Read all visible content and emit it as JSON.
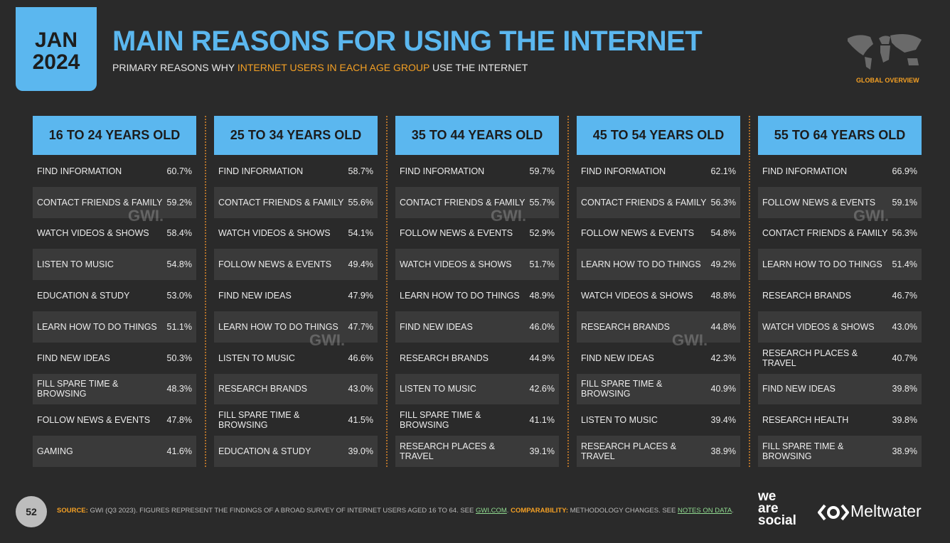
{
  "header": {
    "date_month": "JAN",
    "date_year": "2024",
    "title": "MAIN REASONS FOR USING THE INTERNET",
    "subtitle_start": "PRIMARY REASONS WHY",
    "subtitle_highlight": "INTERNET USERS IN EACH AGE GROUP",
    "subtitle_end": "USE THE INTERNET",
    "region": "GLOBAL OVERVIEW"
  },
  "watermark": "GWI.",
  "columns": [
    {
      "heading": "16 TO 24 YEARS OLD",
      "rows": [
        [
          "FIND INFORMATION",
          "60.7%"
        ],
        [
          "CONTACT FRIENDS & FAMILY",
          "59.2%"
        ],
        [
          "WATCH VIDEOS & SHOWS",
          "58.4%"
        ],
        [
          "LISTEN TO MUSIC",
          "54.8%"
        ],
        [
          "EDUCATION & STUDY",
          "53.0%"
        ],
        [
          "LEARN HOW TO DO THINGS",
          "51.1%"
        ],
        [
          "FIND NEW IDEAS",
          "50.3%"
        ],
        [
          "FILL SPARE TIME & BROWSING",
          "48.3%"
        ],
        [
          "FOLLOW NEWS & EVENTS",
          "47.8%"
        ],
        [
          "GAMING",
          "41.6%"
        ]
      ]
    },
    {
      "heading": "25 TO 34 YEARS OLD",
      "rows": [
        [
          "FIND INFORMATION",
          "58.7%"
        ],
        [
          "CONTACT FRIENDS & FAMILY",
          "55.6%"
        ],
        [
          "WATCH VIDEOS & SHOWS",
          "54.1%"
        ],
        [
          "FOLLOW NEWS & EVENTS",
          "49.4%"
        ],
        [
          "FIND NEW IDEAS",
          "47.9%"
        ],
        [
          "LEARN HOW TO DO THINGS",
          "47.7%"
        ],
        [
          "LISTEN TO MUSIC",
          "46.6%"
        ],
        [
          "RESEARCH BRANDS",
          "43.0%"
        ],
        [
          "FILL SPARE TIME & BROWSING",
          "41.5%"
        ],
        [
          "EDUCATION & STUDY",
          "39.0%"
        ]
      ]
    },
    {
      "heading": "35 TO 44 YEARS OLD",
      "rows": [
        [
          "FIND INFORMATION",
          "59.7%"
        ],
        [
          "CONTACT FRIENDS & FAMILY",
          "55.7%"
        ],
        [
          "FOLLOW NEWS & EVENTS",
          "52.9%"
        ],
        [
          "WATCH VIDEOS & SHOWS",
          "51.7%"
        ],
        [
          "LEARN HOW TO DO THINGS",
          "48.9%"
        ],
        [
          "FIND NEW IDEAS",
          "46.0%"
        ],
        [
          "RESEARCH BRANDS",
          "44.9%"
        ],
        [
          "LISTEN TO MUSIC",
          "42.6%"
        ],
        [
          "FILL SPARE TIME & BROWSING",
          "41.1%"
        ],
        [
          "RESEARCH PLACES & TRAVEL",
          "39.1%"
        ]
      ]
    },
    {
      "heading": "45 TO 54 YEARS OLD",
      "rows": [
        [
          "FIND INFORMATION",
          "62.1%"
        ],
        [
          "CONTACT FRIENDS & FAMILY",
          "56.3%"
        ],
        [
          "FOLLOW NEWS & EVENTS",
          "54.8%"
        ],
        [
          "LEARN HOW TO DO THINGS",
          "49.2%"
        ],
        [
          "WATCH VIDEOS & SHOWS",
          "48.8%"
        ],
        [
          "RESEARCH BRANDS",
          "44.8%"
        ],
        [
          "FIND NEW IDEAS",
          "42.3%"
        ],
        [
          "FILL SPARE TIME & BROWSING",
          "40.9%"
        ],
        [
          "LISTEN TO MUSIC",
          "39.4%"
        ],
        [
          "RESEARCH PLACES & TRAVEL",
          "38.9%"
        ]
      ]
    },
    {
      "heading": "55 TO 64 YEARS OLD",
      "rows": [
        [
          "FIND INFORMATION",
          "66.9%"
        ],
        [
          "FOLLOW NEWS & EVENTS",
          "59.1%"
        ],
        [
          "CONTACT FRIENDS & FAMILY",
          "56.3%"
        ],
        [
          "LEARN HOW TO DO THINGS",
          "51.4%"
        ],
        [
          "RESEARCH BRANDS",
          "46.7%"
        ],
        [
          "WATCH VIDEOS & SHOWS",
          "43.0%"
        ],
        [
          "RESEARCH PLACES & TRAVEL",
          "40.7%"
        ],
        [
          "FIND NEW IDEAS",
          "39.8%"
        ],
        [
          "RESEARCH HEALTH",
          "39.8%"
        ],
        [
          "FILL SPARE TIME & BROWSING",
          "38.9%"
        ]
      ]
    }
  ],
  "footer": {
    "page": "52",
    "source_label": "SOURCE:",
    "source_text": "GWI (Q3 2023). FIGURES REPRESENT THE FINDINGS OF A BROAD SURVEY OF INTERNET USERS AGED 16 TO 64. SEE",
    "source_link": "GWI.COM",
    "comparability_label": "COMPARABILITY:",
    "comparability_text": "METHODOLOGY CHANGES. SEE",
    "notes_link": "NOTES ON DATA",
    "logo_line1": "we",
    "logo_line2": "are",
    "logo_line3": "social",
    "meltwater": "Meltwater"
  }
}
